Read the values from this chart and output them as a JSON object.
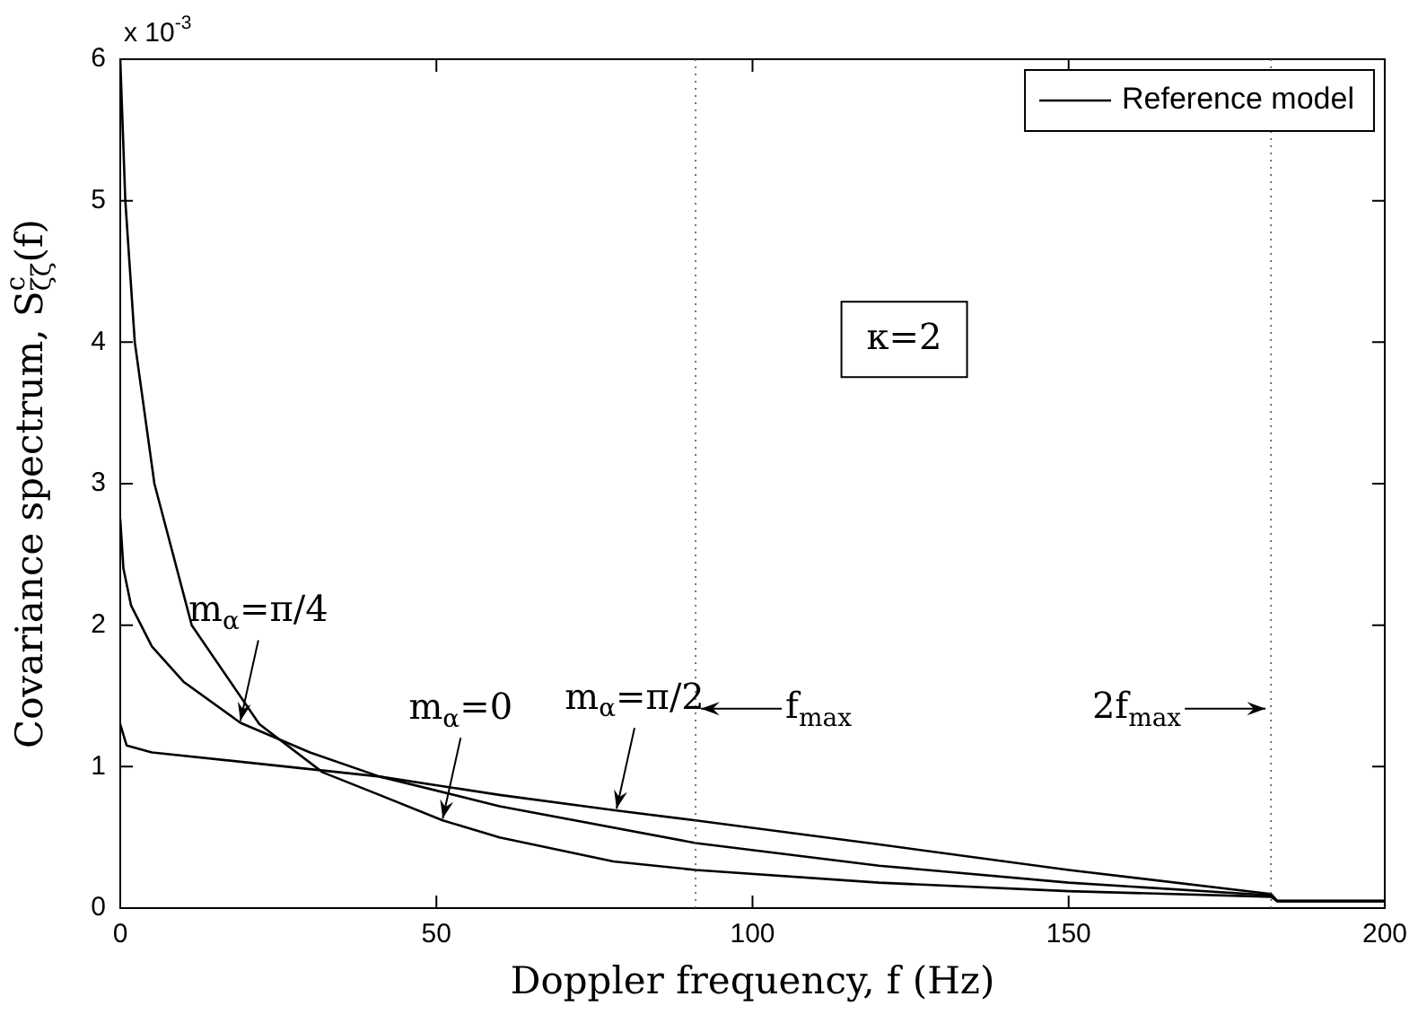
{
  "chart_data": {
    "type": "line",
    "xlabel": "Doppler frequency, f (Hz)",
    "ylabel": "Covariance spectrum, S$^{c}$$_{ζζ}$(f)",
    "x": [
      0,
      0.8,
      2.3,
      5.4,
      11.3,
      22,
      32,
      41,
      51,
      60,
      78,
      91,
      120,
      150,
      182,
      183,
      200
    ],
    "series": [
      {
        "name": "Reference model",
        "color": "#000000",
        "values": [
          6.0,
          5.0,
          4.0,
          3.0,
          2.0,
          1.3,
          0.96,
          0.8,
          0.62,
          0.5,
          0.33,
          0.27,
          0.18,
          0.12,
          0.08,
          0.05,
          0.05
        ]
      },
      {
        "color": "#000000",
        "x": [
          0,
          0.5,
          1.7,
          5,
          10,
          19,
          30,
          41,
          60,
          91,
          120,
          150,
          182,
          183,
          200
        ],
        "values": [
          2.75,
          2.4,
          2.14,
          1.85,
          1.6,
          1.31,
          1.1,
          0.93,
          0.72,
          0.46,
          0.3,
          0.18,
          0.09,
          0.05,
          0.05
        ]
      },
      {
        "color": "#000000",
        "x": [
          0,
          1,
          5,
          20,
          41,
          60,
          78.5,
          91,
          120,
          150,
          182,
          183,
          200
        ],
        "values": [
          1.3,
          1.15,
          1.1,
          1.03,
          0.93,
          0.8,
          0.69,
          0.62,
          0.45,
          0.27,
          0.1,
          0.05,
          0.05
        ]
      }
    ],
    "xlim": [
      0,
      200
    ],
    "xticks": [
      0,
      50,
      100,
      150,
      200
    ],
    "ylim": [
      0,
      6
    ],
    "yticks": [
      0,
      1,
      2,
      3,
      4,
      5,
      6
    ],
    "grid": false,
    "legend": "top right",
    "marker": "none",
    "line_style": "solid",
    "ref_lines": [
      {
        "axis": "x",
        "value": 91,
        "label": "f$_{max}$",
        "line_style": "dotted"
      },
      {
        "axis": "x",
        "value": 182,
        "label": "2f$_{max}$",
        "line_style": "dotted"
      }
    ],
    "annotations": [
      "x 10$^{-3}$",
      "κ=2",
      {
        "text": "m$_{α}$=π/4",
        "x": 19,
        "y": 1.31
      },
      {
        "text": "m$_{α}$=0",
        "x": 51,
        "y": 0.62
      },
      {
        "text": "m$_{α}$=π/2",
        "x": 78.5,
        "y": 0.69
      }
    ]
  }
}
